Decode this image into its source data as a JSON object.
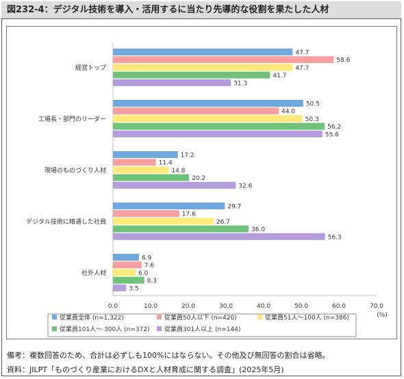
{
  "title": "図232-4：デジタル技術を導入・活用するに当たり先導的な役割を果たした人材",
  "notes": {
    "remarks": "備考：複数回答のため、合計は必ずしも100%にはならない。その他及び無回答の割合は省略。",
    "source": "資料：JILPT「ものづくり産業におけるDXと人材育成に関する調査」(2025年5月)"
  },
  "chart_data": {
    "type": "bar",
    "orientation": "horizontal",
    "categories": [
      "経営トップ",
      "工場長・部門のリーダー",
      "現場のものづくり人材",
      "デジタル技術に精通した社員",
      "社外人材"
    ],
    "series": [
      {
        "name": "従業員全体 (n=1,322)",
        "color": "#6fa8dc",
        "values": [
          47.7,
          50.5,
          17.2,
          29.7,
          6.9
        ]
      },
      {
        "name": "従業員50人以下 (n=420)",
        "color": "#f4a0a0",
        "values": [
          58.6,
          44.0,
          11.4,
          17.6,
          7.6
        ]
      },
      {
        "name": "従業員51人～100人 (n=386)",
        "color": "#ffe97a",
        "values": [
          47.7,
          50.3,
          14.8,
          26.7,
          6.0
        ]
      },
      {
        "name": "従業員101人～ 300人 (n=372)",
        "color": "#70c27a",
        "values": [
          41.7,
          56.2,
          20.2,
          36.0,
          8.3
        ]
      },
      {
        "name": "従業員301人以上 (n=144)",
        "color": "#b39ddb",
        "values": [
          31.3,
          55.6,
          32.6,
          56.3,
          3.5
        ]
      }
    ],
    "xlim": [
      0,
      70
    ],
    "xticks": [
      "0.0",
      "10.0",
      "20.0",
      "30.0",
      "40.0",
      "50.0",
      "60.0",
      "70.0"
    ],
    "xunit": "(%)",
    "grid": false,
    "legend_position": "bottom"
  }
}
